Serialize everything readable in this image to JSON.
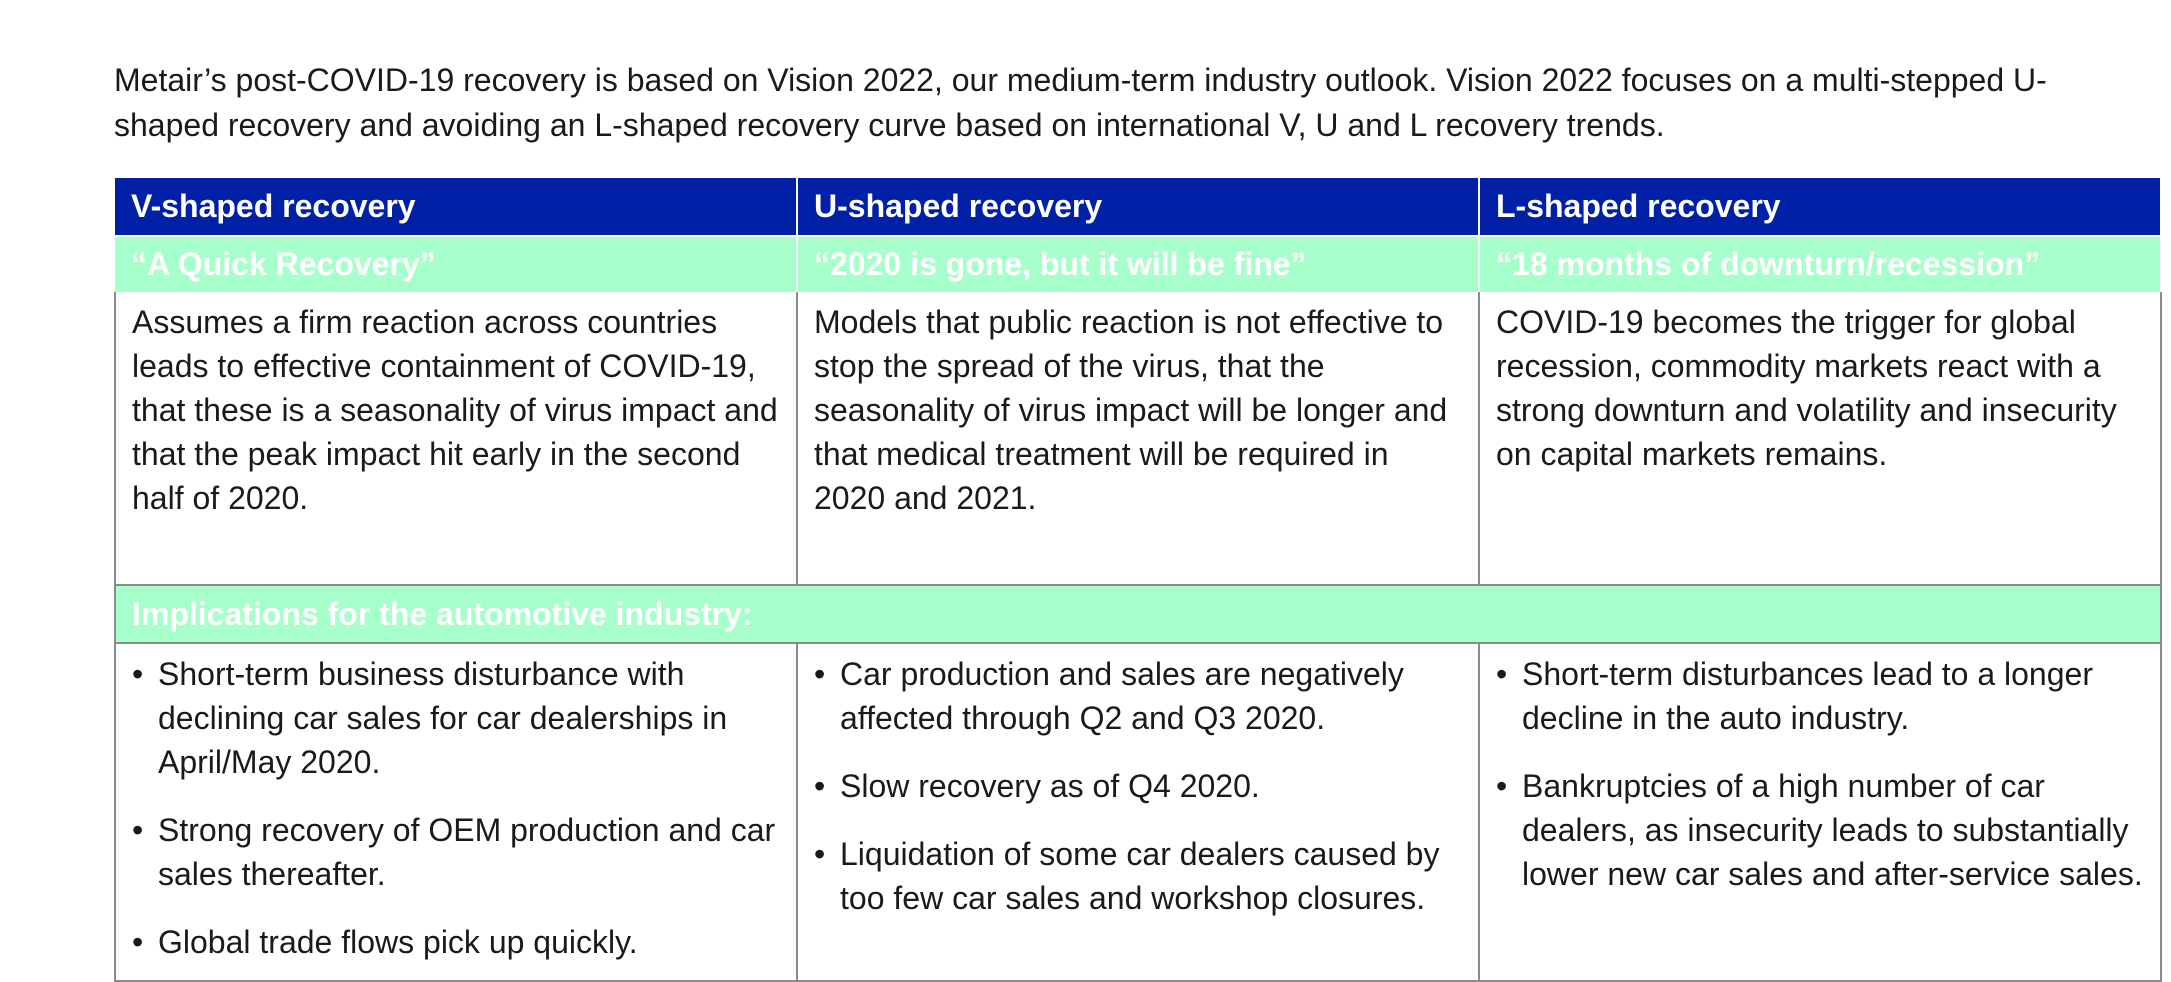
{
  "intro": "Metair’s post-COVID-19 recovery is based on Vision 2022, our medium-term industry outlook. Vision 2022 focuses on a multi-stepped U-shaped recovery and avoiding an L-shaped recovery curve based on international V, U and L recovery trends.",
  "colors": {
    "header_bg": "#0021a5",
    "subheader_bg": "#a7ffcc",
    "border": "#8c8c8c"
  },
  "columns": [
    {
      "title": "V-shaped recovery",
      "tagline": "“A Quick Recovery”",
      "description": "Assumes a firm reaction across countries leads to effective containment of COVID-19, that these is a seasonality of virus impact and that the peak impact hit early in the second half of 2020.",
      "implications": [
        "Short-term business disturbance with declining car sales for car dealerships in April/May 2020.",
        "Strong recovery of OEM production and car sales thereafter.",
        "Global trade flows pick up quickly."
      ]
    },
    {
      "title": "U-shaped recovery",
      "tagline": "“2020 is gone, but it will be fine”",
      "description": "Models that public reaction is not effective to stop the spread of the virus, that the seasonality of virus impact will be longer and that medical treatment will be required in 2020 and 2021.",
      "implications": [
        "Car production and sales are negatively affected through Q2 and Q3 2020.",
        "Slow recovery as of Q4 2020.",
        "Liquidation of some car dealers caused by too few car sales and workshop closures."
      ]
    },
    {
      "title": "L-shaped recovery",
      "tagline": "“18 months of downturn/recession”",
      "description": "COVID-19 becomes the trigger for global recession, commodity markets react with a strong downturn and volatility and insecurity on capital markets remains.",
      "implications": [
        "Short-term disturbances lead to a longer decline in the auto industry.",
        "Bankruptcies of a high number of car dealers, as insecurity leads to substantially lower new car sales and after-service sales."
      ]
    }
  ],
  "implications_heading": "Implications for the automotive industry:"
}
